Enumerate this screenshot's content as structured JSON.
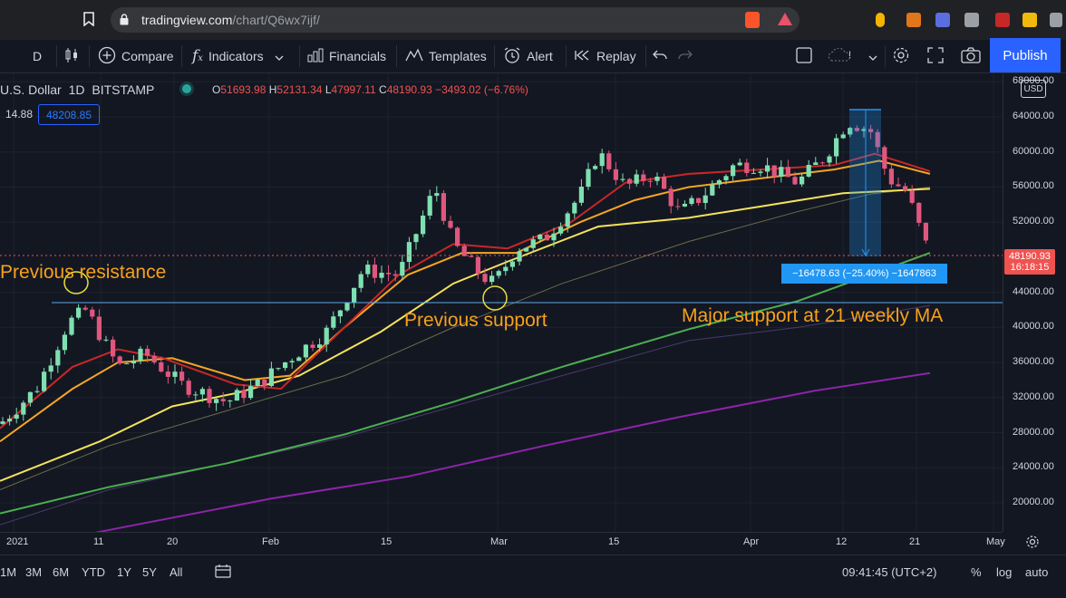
{
  "browser": {
    "url_domain": "tradingview.com",
    "url_path": "/chart/Q6wx7ijf/"
  },
  "toolbar": {
    "interval": "D",
    "compare": "Compare",
    "indicators": "Indicators",
    "financials": "Financials",
    "templates": "Templates",
    "alert": "Alert",
    "replay": "Replay",
    "publish": "Publish"
  },
  "legend": {
    "symbol": "U.S. Dollar",
    "interval": "1D",
    "exchange": "BITSTAMP",
    "open_label": "O",
    "open": "51693.98",
    "high_label": "H",
    "high": "52131.34",
    "low_label": "L",
    "low": "47997.11",
    "close_label": "C",
    "close": "48190.93",
    "change": "−3493.02 (−6.76%)",
    "indicator_value_left": "14.88",
    "indicator_value": "48208.85"
  },
  "price_scale": {
    "currency": "USD",
    "ticks": [
      "68000.00",
      "64000.00",
      "60000.00",
      "56000.00",
      "52000.00",
      "44000.00",
      "40000.00",
      "36000.00",
      "32000.00",
      "28000.00",
      "24000.00",
      "20000.00"
    ],
    "current_price": "48190.93",
    "countdown": "16:18:15"
  },
  "time_axis": {
    "ticks": [
      "2021",
      "11",
      "20",
      "Feb",
      "15",
      "Mar",
      "15",
      "Apr",
      "12",
      "21",
      "May"
    ]
  },
  "annotations": {
    "previous_resistance": "Previous resistance",
    "previous_support": "Previous support",
    "major_support": "Major support at 21 weekly MA",
    "measure_label": "−16478.63 (−25.40%) −1647863"
  },
  "bottom_bar": {
    "ranges": [
      "1M",
      "3M",
      "6M",
      "YTD",
      "1Y",
      "5Y",
      "All"
    ],
    "time": "09:41:45 (UTC+2)",
    "percent": "%",
    "log": "log",
    "auto": "auto"
  },
  "colors": {
    "up": "#7ee0b0",
    "down": "#e0577e",
    "ma_yellow": "#f5e35a",
    "ma_orange": "#f5a623",
    "ma_red": "#c62828",
    "ma_green": "#4caf50",
    "ma_purple": "#8e24aa",
    "annotation": "#f7a11a",
    "accent": "#2962ff"
  }
}
